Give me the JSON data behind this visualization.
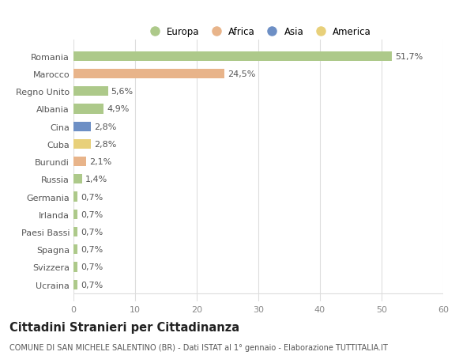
{
  "categories": [
    "Romania",
    "Marocco",
    "Regno Unito",
    "Albania",
    "Cina",
    "Cuba",
    "Burundi",
    "Russia",
    "Germania",
    "Irlanda",
    "Paesi Bassi",
    "Spagna",
    "Svizzera",
    "Ucraina"
  ],
  "values": [
    51.7,
    24.5,
    5.6,
    4.9,
    2.8,
    2.8,
    2.1,
    1.4,
    0.7,
    0.7,
    0.7,
    0.7,
    0.7,
    0.7
  ],
  "labels": [
    "51,7%",
    "24,5%",
    "5,6%",
    "4,9%",
    "2,8%",
    "2,8%",
    "2,1%",
    "1,4%",
    "0,7%",
    "0,7%",
    "0,7%",
    "0,7%",
    "0,7%",
    "0,7%"
  ],
  "colors": [
    "#adc98a",
    "#e8b48a",
    "#adc98a",
    "#adc98a",
    "#6d8fc5",
    "#e8d07a",
    "#e8b48a",
    "#adc98a",
    "#adc98a",
    "#adc98a",
    "#adc98a",
    "#adc98a",
    "#adc98a",
    "#adc98a"
  ],
  "legend_labels": [
    "Europa",
    "Africa",
    "Asia",
    "America"
  ],
  "legend_colors": [
    "#adc98a",
    "#e8b48a",
    "#6d8fc5",
    "#e8d07a"
  ],
  "xlim": [
    0,
    60
  ],
  "xticks": [
    0,
    10,
    20,
    30,
    40,
    50,
    60
  ],
  "title": "Cittadini Stranieri per Cittadinanza",
  "subtitle": "COMUNE DI SAN MICHELE SALENTINO (BR) - Dati ISTAT al 1° gennaio - Elaborazione TUTTITALIA.IT",
  "bg_color": "#ffffff",
  "grid_color": "#dddddd",
  "bar_height": 0.55,
  "label_fontsize": 8,
  "tick_fontsize": 8,
  "title_fontsize": 10.5,
  "subtitle_fontsize": 7
}
